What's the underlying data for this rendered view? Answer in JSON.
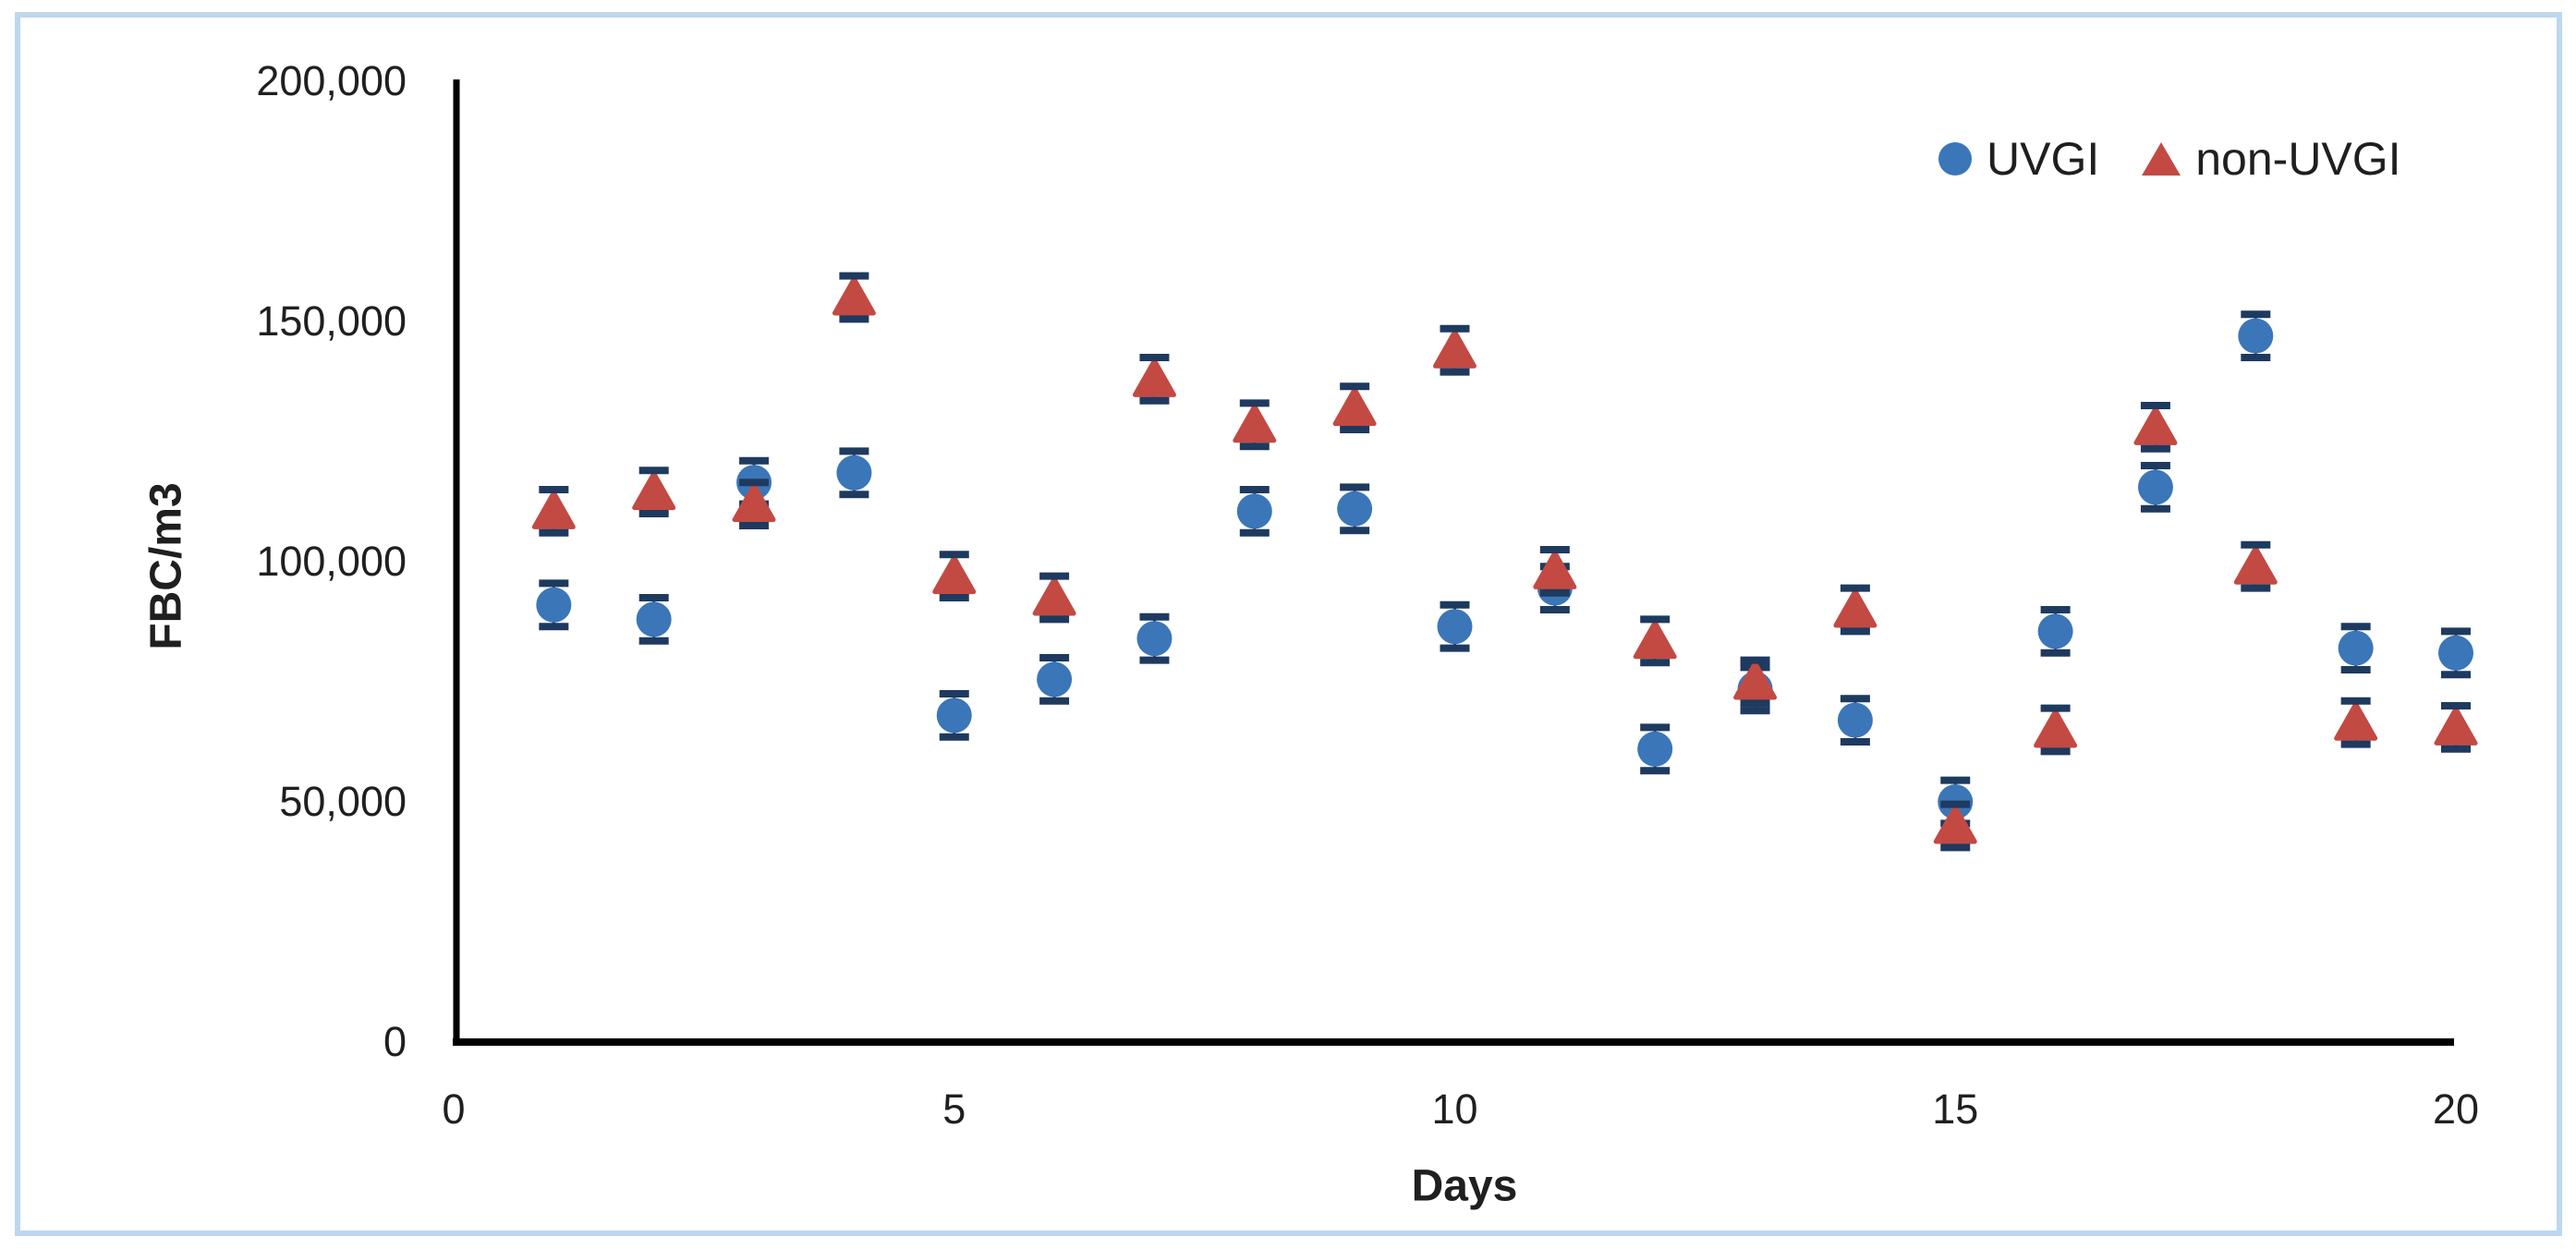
{
  "figure": {
    "border_color": "#BDD7EE",
    "background_color": "#FFFFFF"
  },
  "chart_data": {
    "type": "scatter",
    "title": "",
    "xlabel": "Days",
    "ylabel": "FBC/m3",
    "x": [
      1,
      2,
      3,
      4,
      5,
      6,
      7,
      8,
      9,
      10,
      11,
      12,
      13,
      14,
      15,
      16,
      17,
      18,
      19,
      20
    ],
    "series": [
      {
        "name": "UVGI",
        "marker": "circle",
        "color": "#3B76B8",
        "values": [
          91000,
          88000,
          116500,
          118500,
          68000,
          75500,
          84000,
          110500,
          111000,
          86500,
          94500,
          61000,
          73500,
          67000,
          50000,
          85500,
          115500,
          147000,
          82000,
          81000
        ],
        "error": 4500
      },
      {
        "name": "non-UVGI",
        "marker": "triangle",
        "color": "#C24A43",
        "values": [
          110500,
          114500,
          112000,
          155000,
          97000,
          92500,
          138000,
          128500,
          132000,
          144000,
          98000,
          83500,
          75000,
          90000,
          45000,
          65000,
          128000,
          99000,
          66500,
          65500
        ],
        "error": 4500
      }
    ],
    "error_bar_color": "#1E3A5F",
    "axis_color": "#000000",
    "text_color": "#1F1F1F",
    "xlim": [
      0,
      20
    ],
    "ylim": [
      0,
      200000
    ],
    "xticks": [
      0,
      5,
      10,
      15,
      20
    ],
    "xtick_labels": [
      "0",
      "5",
      "10",
      "15",
      "20"
    ],
    "yticks": [
      0,
      50000,
      100000,
      150000,
      200000
    ],
    "ytick_labels": [
      "0",
      "50,000",
      "100,000",
      "150,000",
      "200,000"
    ],
    "legend_position": "top-right",
    "grid": false
  }
}
